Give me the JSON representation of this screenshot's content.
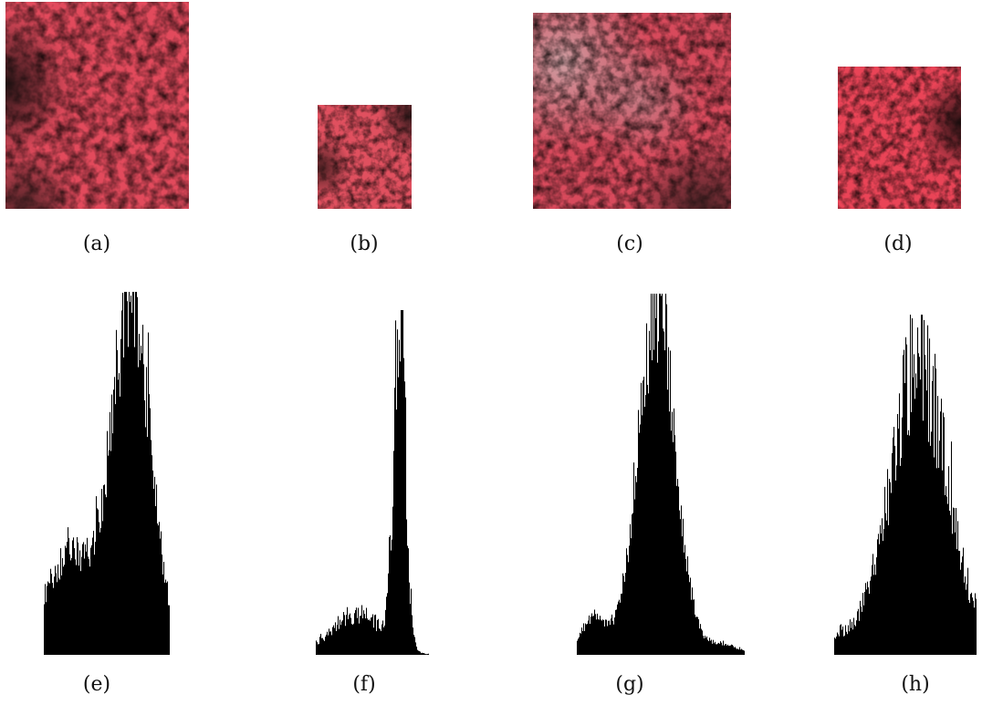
{
  "figure": {
    "panels": [
      {
        "id": "a",
        "caption": "(a)",
        "kind": "image",
        "texture": "dense red canopy with dark left edge"
      },
      {
        "id": "b",
        "caption": "(b)",
        "kind": "image",
        "texture": "small red canopy patch with dark corners"
      },
      {
        "id": "c",
        "caption": "(c)",
        "kind": "image",
        "texture": "red canopy with pale grey patches"
      },
      {
        "id": "d",
        "caption": "(d)",
        "kind": "image",
        "texture": "bright red canopy with dark right edge"
      },
      {
        "id": "e",
        "caption": "(e)",
        "kind": "histogram"
      },
      {
        "id": "f",
        "caption": "(f)",
        "kind": "histogram"
      },
      {
        "id": "g",
        "caption": "(g)",
        "kind": "histogram"
      },
      {
        "id": "h",
        "caption": "(h)",
        "kind": "histogram"
      }
    ],
    "colors": {
      "canopy_red": "#e0455a",
      "canopy_dark": "#2a1a1a",
      "histogram_fill": "#000000"
    }
  }
}
